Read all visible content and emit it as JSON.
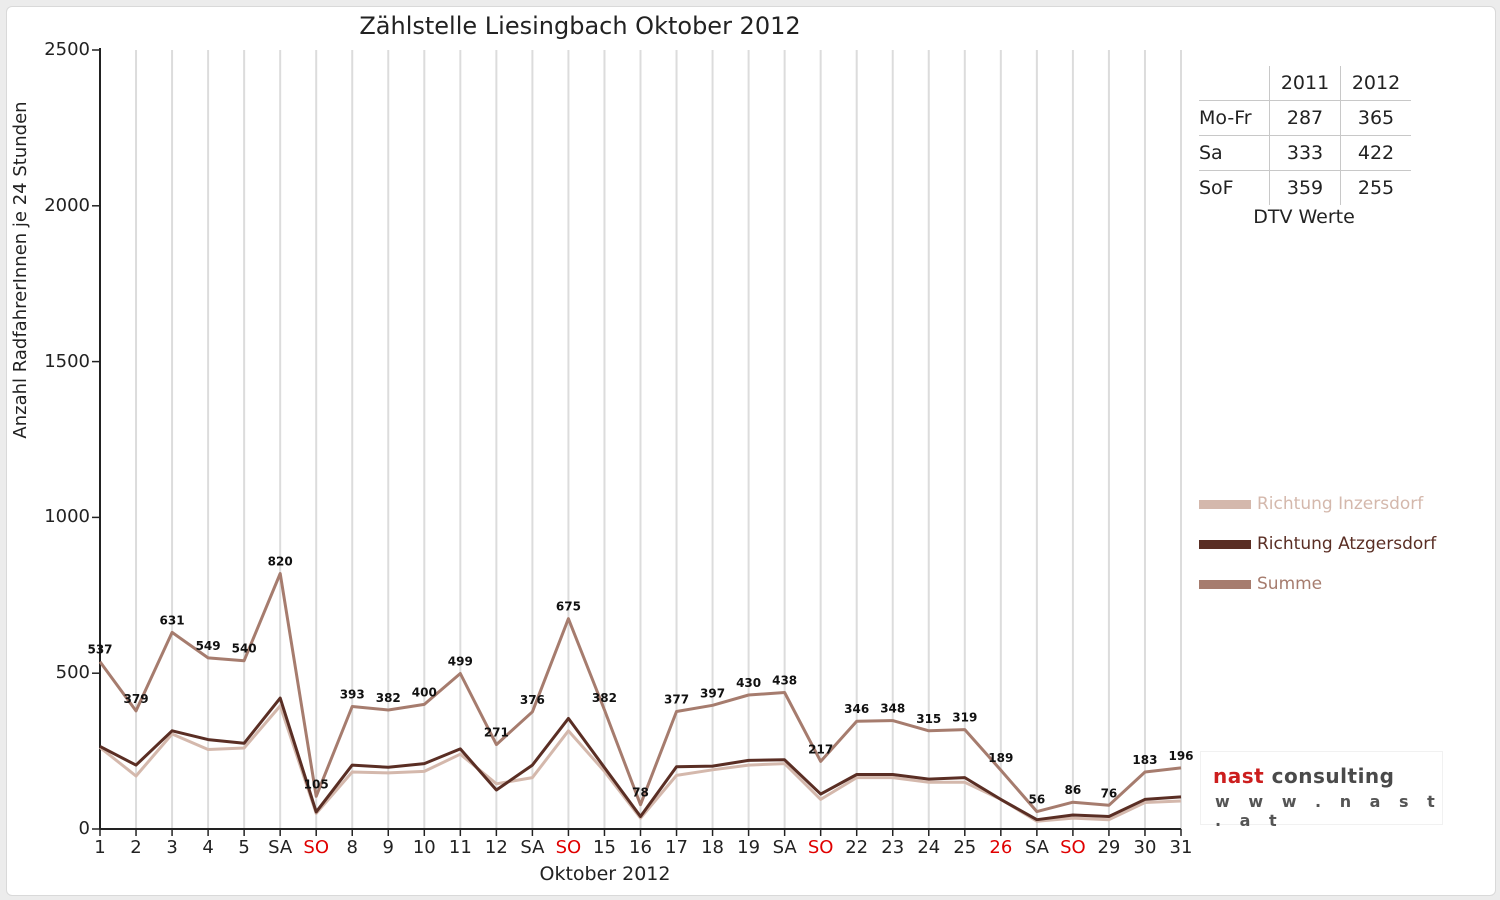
{
  "chart_data": {
    "type": "line",
    "title": "Zählstelle Liesingbach Oktober 2012",
    "xlabel": "Oktober 2012",
    "ylabel": "Anzahl RadfahrerInnen je 24 Stunden",
    "ylim": [
      0,
      2500
    ],
    "yticks": [
      "0",
      "500",
      "1000",
      "1500",
      "2000",
      "2500"
    ],
    "grid": true,
    "legend_position": "right",
    "categories": [
      "1",
      "2",
      "3",
      "4",
      "5",
      "SA",
      "SO",
      "8",
      "9",
      "10",
      "11",
      "12",
      "SA",
      "SO",
      "15",
      "16",
      "17",
      "18",
      "19",
      "SA",
      "SO",
      "22",
      "23",
      "24",
      "25",
      "26",
      "SA",
      "SO",
      "29",
      "30",
      "31"
    ],
    "highlight_categories": [
      6,
      13,
      20,
      25,
      27
    ],
    "highlight_color": "#e00000",
    "series": [
      {
        "name": "Richtung Inzersdorf",
        "color": "#d4b8ac",
        "values": [
          262,
          170,
          305,
          255,
          260,
          395,
          50,
          183,
          180,
          185,
          240,
          145,
          165,
          315,
          185,
          35,
          172,
          190,
          205,
          210,
          95,
          165,
          165,
          150,
          150,
          95,
          25,
          35,
          30,
          85,
          90
        ]
      },
      {
        "name": "Richtung Atzgersdorf",
        "color": "#5a2e24",
        "values": [
          265,
          205,
          315,
          287,
          275,
          420,
          55,
          205,
          198,
          210,
          257,
          125,
          205,
          355,
          197,
          40,
          200,
          202,
          220,
          222,
          112,
          175,
          175,
          160,
          165,
          95,
          30,
          45,
          40,
          95,
          103
        ]
      },
      {
        "name": "Summe",
        "color": "#a67c6e",
        "values": [
          537,
          379,
          631,
          549,
          540,
          820,
          105,
          393,
          382,
          400,
          499,
          271,
          376,
          675,
          382,
          78,
          377,
          397,
          430,
          438,
          217,
          346,
          348,
          315,
          319,
          189,
          56,
          86,
          76,
          183,
          196
        ]
      }
    ],
    "data_labels": [
      "537",
      "379",
      "631",
      "549",
      "540",
      "820",
      "105",
      "393",
      "382",
      "400",
      "499",
      "271",
      "376",
      "675",
      "382",
      "78",
      "377",
      "397",
      "430",
      "438",
      "217",
      "346",
      "348",
      "315",
      "319",
      "189",
      "56",
      "86",
      "76",
      "183",
      "196"
    ]
  },
  "dtv_table": {
    "years": [
      "2011",
      "2012"
    ],
    "rows": [
      {
        "label": "Mo-Fr",
        "v2011": "287",
        "v2012": "365"
      },
      {
        "label": "Sa",
        "v2011": "333",
        "v2012": "422"
      },
      {
        "label": "SoF",
        "v2011": "359",
        "v2012": "255"
      }
    ],
    "caption": "DTV Werte"
  },
  "logo": {
    "text_nast": "nast",
    "text_consulting": "consulting",
    "url": "w w w . n a s t . a t",
    "color_nast": "#cc1e1e",
    "color_consulting": "#4a4a4a"
  }
}
